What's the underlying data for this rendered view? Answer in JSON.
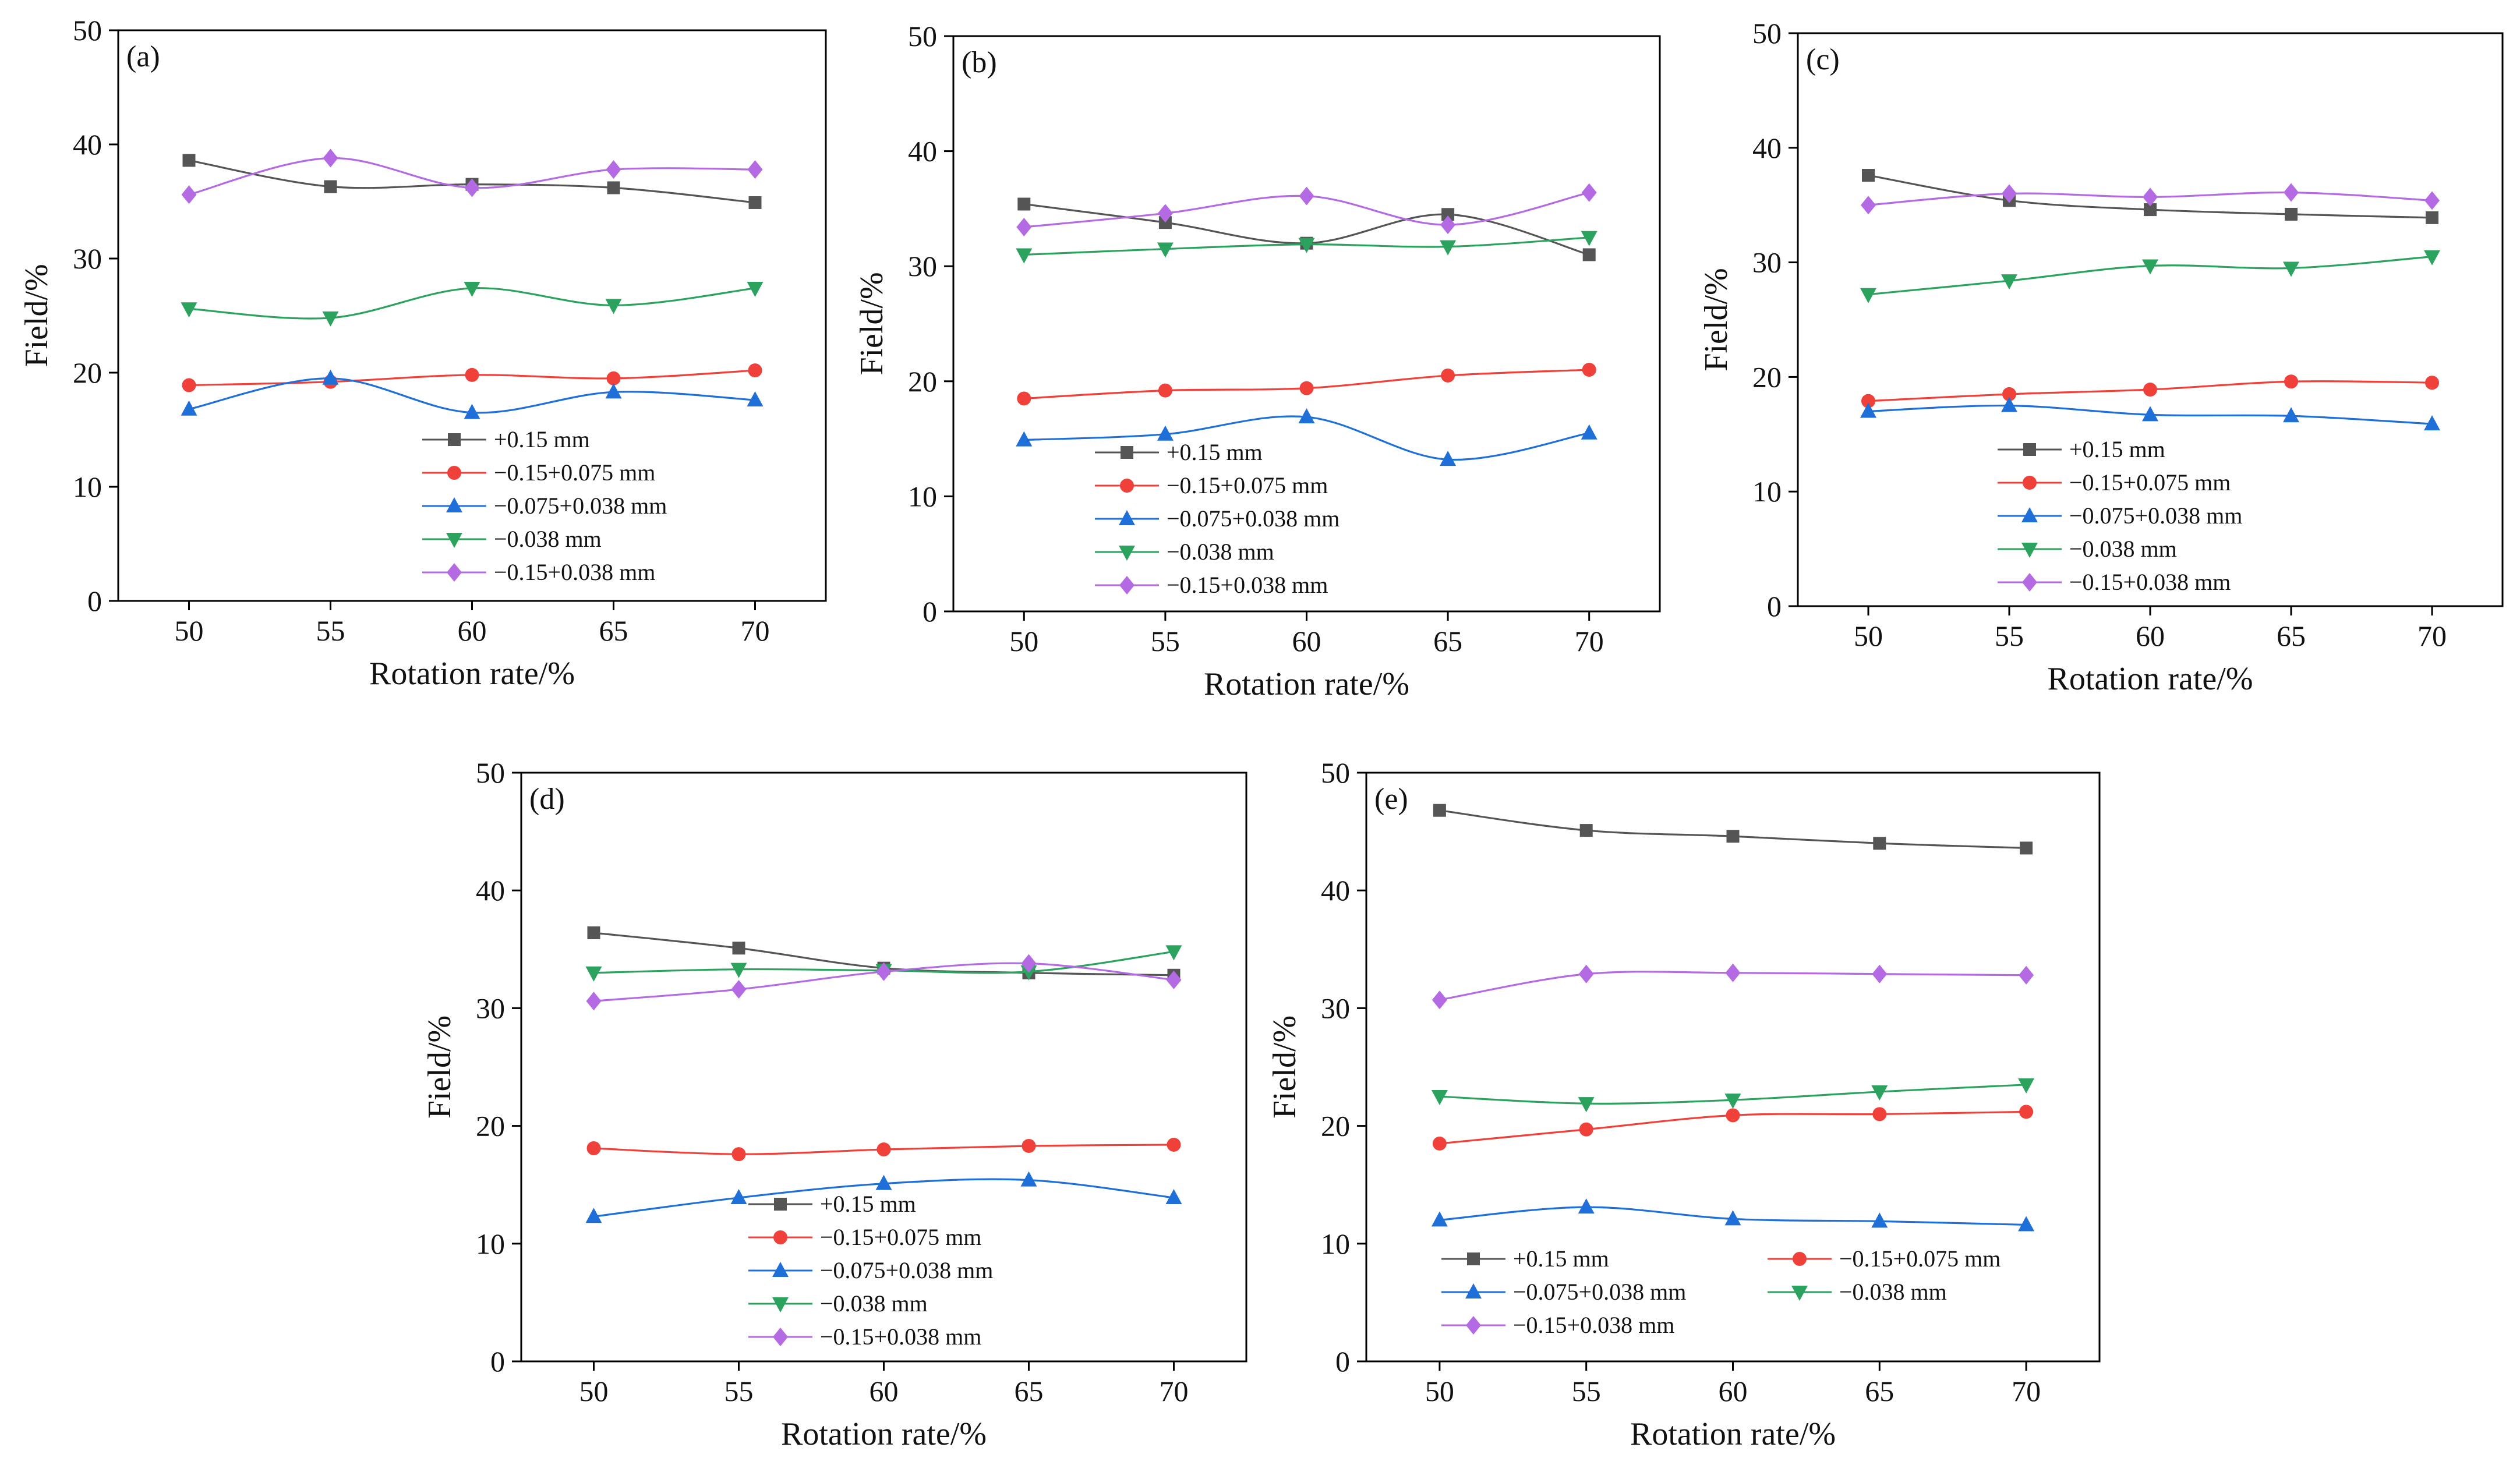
{
  "figure": {
    "xlabel": "Rotation rate/%",
    "ylabel": "Field/%"
  },
  "chart_data": [
    {
      "type": "line",
      "panel_label": "(a)",
      "x": [
        50,
        55,
        60,
        65,
        70
      ],
      "xticks": [
        "50",
        "55",
        "60",
        "65",
        "70"
      ],
      "ylim": [
        0,
        50
      ],
      "yticks": [
        "0",
        "10",
        "20",
        "30",
        "40",
        "50"
      ],
      "xlabel": "Rotation rate/%",
      "ylabel": "Field/%",
      "series": [
        {
          "name": "+0.15 mm",
          "color": "#555555",
          "marker": "square",
          "values": [
            38.6,
            36.3,
            36.5,
            36.2,
            34.9
          ]
        },
        {
          "name": "−0.15+0.075 mm",
          "color": "#f0403a",
          "marker": "circle",
          "values": [
            18.9,
            19.2,
            19.8,
            19.5,
            20.2
          ]
        },
        {
          "name": "−0.075+0.038 mm",
          "color": "#1f6fd8",
          "marker": "triangle-up",
          "values": [
            16.8,
            19.5,
            16.5,
            18.3,
            17.6
          ]
        },
        {
          "name": "−0.038 mm",
          "color": "#2ca25f",
          "marker": "triangle-down",
          "values": [
            25.6,
            24.8,
            27.4,
            25.9,
            27.4
          ]
        },
        {
          "name": "−0.15+0.038 mm",
          "color": "#b36ae2",
          "marker": "diamond",
          "values": [
            35.6,
            38.8,
            36.2,
            37.8,
            37.8
          ]
        }
      ]
    },
    {
      "type": "line",
      "panel_label": "(b)",
      "x": [
        50,
        55,
        60,
        65,
        70
      ],
      "xticks": [
        "50",
        "55",
        "60",
        "65",
        "70"
      ],
      "ylim": [
        0,
        50
      ],
      "yticks": [
        "0",
        "10",
        "20",
        "30",
        "40",
        "50"
      ],
      "xlabel": "Rotation rate/%",
      "ylabel": "Field/%",
      "series": [
        {
          "name": "+0.15 mm",
          "color": "#555555",
          "marker": "square",
          "values": [
            35.4,
            33.8,
            32.0,
            34.5,
            31.0
          ]
        },
        {
          "name": "−0.15+0.075 mm",
          "color": "#f0403a",
          "marker": "circle",
          "values": [
            18.5,
            19.2,
            19.4,
            20.5,
            21.0
          ]
        },
        {
          "name": "−0.075+0.038 mm",
          "color": "#1f6fd8",
          "marker": "triangle-up",
          "values": [
            14.9,
            15.4,
            16.9,
            13.2,
            15.5
          ]
        },
        {
          "name": "−0.038 mm",
          "color": "#2ca25f",
          "marker": "triangle-down",
          "values": [
            31.0,
            31.5,
            31.9,
            31.7,
            32.5
          ]
        },
        {
          "name": "−0.15+0.038 mm",
          "color": "#b36ae2",
          "marker": "diamond",
          "values": [
            33.4,
            34.6,
            36.1,
            33.6,
            36.4
          ]
        }
      ]
    },
    {
      "type": "line",
      "panel_label": "(c)",
      "x": [
        50,
        55,
        60,
        65,
        70
      ],
      "xticks": [
        "50",
        "55",
        "60",
        "65",
        "70"
      ],
      "ylim": [
        0,
        50
      ],
      "yticks": [
        "0",
        "10",
        "20",
        "30",
        "40",
        "50"
      ],
      "xlabel": "Rotation rate/%",
      "ylabel": "Field/%",
      "series": [
        {
          "name": "+0.15 mm",
          "color": "#555555",
          "marker": "square",
          "values": [
            37.6,
            35.4,
            34.6,
            34.2,
            33.9
          ]
        },
        {
          "name": "−0.15+0.075 mm",
          "color": "#f0403a",
          "marker": "circle",
          "values": [
            17.9,
            18.5,
            18.9,
            19.6,
            19.5
          ]
        },
        {
          "name": "−0.075+0.038 mm",
          "color": "#1f6fd8",
          "marker": "triangle-up",
          "values": [
            17.0,
            17.5,
            16.7,
            16.6,
            15.9
          ]
        },
        {
          "name": "−0.038 mm",
          "color": "#2ca25f",
          "marker": "triangle-down",
          "values": [
            27.2,
            28.4,
            29.7,
            29.5,
            30.5
          ]
        },
        {
          "name": "−0.15+0.038 mm",
          "color": "#b36ae2",
          "marker": "diamond",
          "values": [
            35.0,
            36.0,
            35.7,
            36.1,
            35.4
          ]
        }
      ]
    },
    {
      "type": "line",
      "panel_label": "(d)",
      "x": [
        50,
        55,
        60,
        65,
        70
      ],
      "xticks": [
        "50",
        "55",
        "60",
        "65",
        "70"
      ],
      "ylim": [
        0,
        50
      ],
      "yticks": [
        "0",
        "10",
        "20",
        "30",
        "40",
        "50"
      ],
      "xlabel": "Rotation rate/%",
      "ylabel": "Field/%",
      "series": [
        {
          "name": "+0.15 mm",
          "color": "#555555",
          "marker": "square",
          "values": [
            36.4,
            35.1,
            33.4,
            33.0,
            32.8
          ]
        },
        {
          "name": "−0.15+0.075 mm",
          "color": "#f0403a",
          "marker": "circle",
          "values": [
            18.1,
            17.6,
            18.0,
            18.3,
            18.4
          ]
        },
        {
          "name": "−0.075+0.038 mm",
          "color": "#1f6fd8",
          "marker": "triangle-up",
          "values": [
            12.3,
            13.9,
            15.1,
            15.4,
            13.9
          ]
        },
        {
          "name": "−0.038 mm",
          "color": "#2ca25f",
          "marker": "triangle-down",
          "values": [
            33.0,
            33.3,
            33.2,
            33.1,
            34.8
          ]
        },
        {
          "name": "−0.15+0.038 mm",
          "color": "#b36ae2",
          "marker": "diamond",
          "values": [
            30.6,
            31.6,
            33.1,
            33.8,
            32.4
          ]
        }
      ]
    },
    {
      "type": "line",
      "panel_label": "(e)",
      "x": [
        50,
        55,
        60,
        65,
        70
      ],
      "xticks": [
        "50",
        "55",
        "60",
        "65",
        "70"
      ],
      "ylim": [
        0,
        50
      ],
      "yticks": [
        "0",
        "10",
        "20",
        "30",
        "40",
        "50"
      ],
      "xlabel": "Rotation rate/%",
      "ylabel": "Field/%",
      "series": [
        {
          "name": "+0.15 mm",
          "color": "#555555",
          "marker": "square",
          "values": [
            46.8,
            45.1,
            44.6,
            44.0,
            43.6
          ]
        },
        {
          "name": "−0.15+0.075 mm",
          "color": "#f0403a",
          "marker": "circle",
          "values": [
            18.5,
            19.7,
            20.9,
            21.0,
            21.2
          ]
        },
        {
          "name": "−0.075+0.038 mm",
          "color": "#1f6fd8",
          "marker": "triangle-up",
          "values": [
            12.0,
            13.1,
            12.1,
            11.9,
            11.6
          ]
        },
        {
          "name": "−0.038 mm",
          "color": "#2ca25f",
          "marker": "triangle-down",
          "values": [
            22.5,
            21.9,
            22.2,
            22.9,
            23.5
          ]
        },
        {
          "name": "−0.15+0.038 mm",
          "color": "#b36ae2",
          "marker": "diamond",
          "values": [
            30.7,
            32.9,
            33.0,
            32.9,
            32.8
          ]
        }
      ]
    }
  ]
}
